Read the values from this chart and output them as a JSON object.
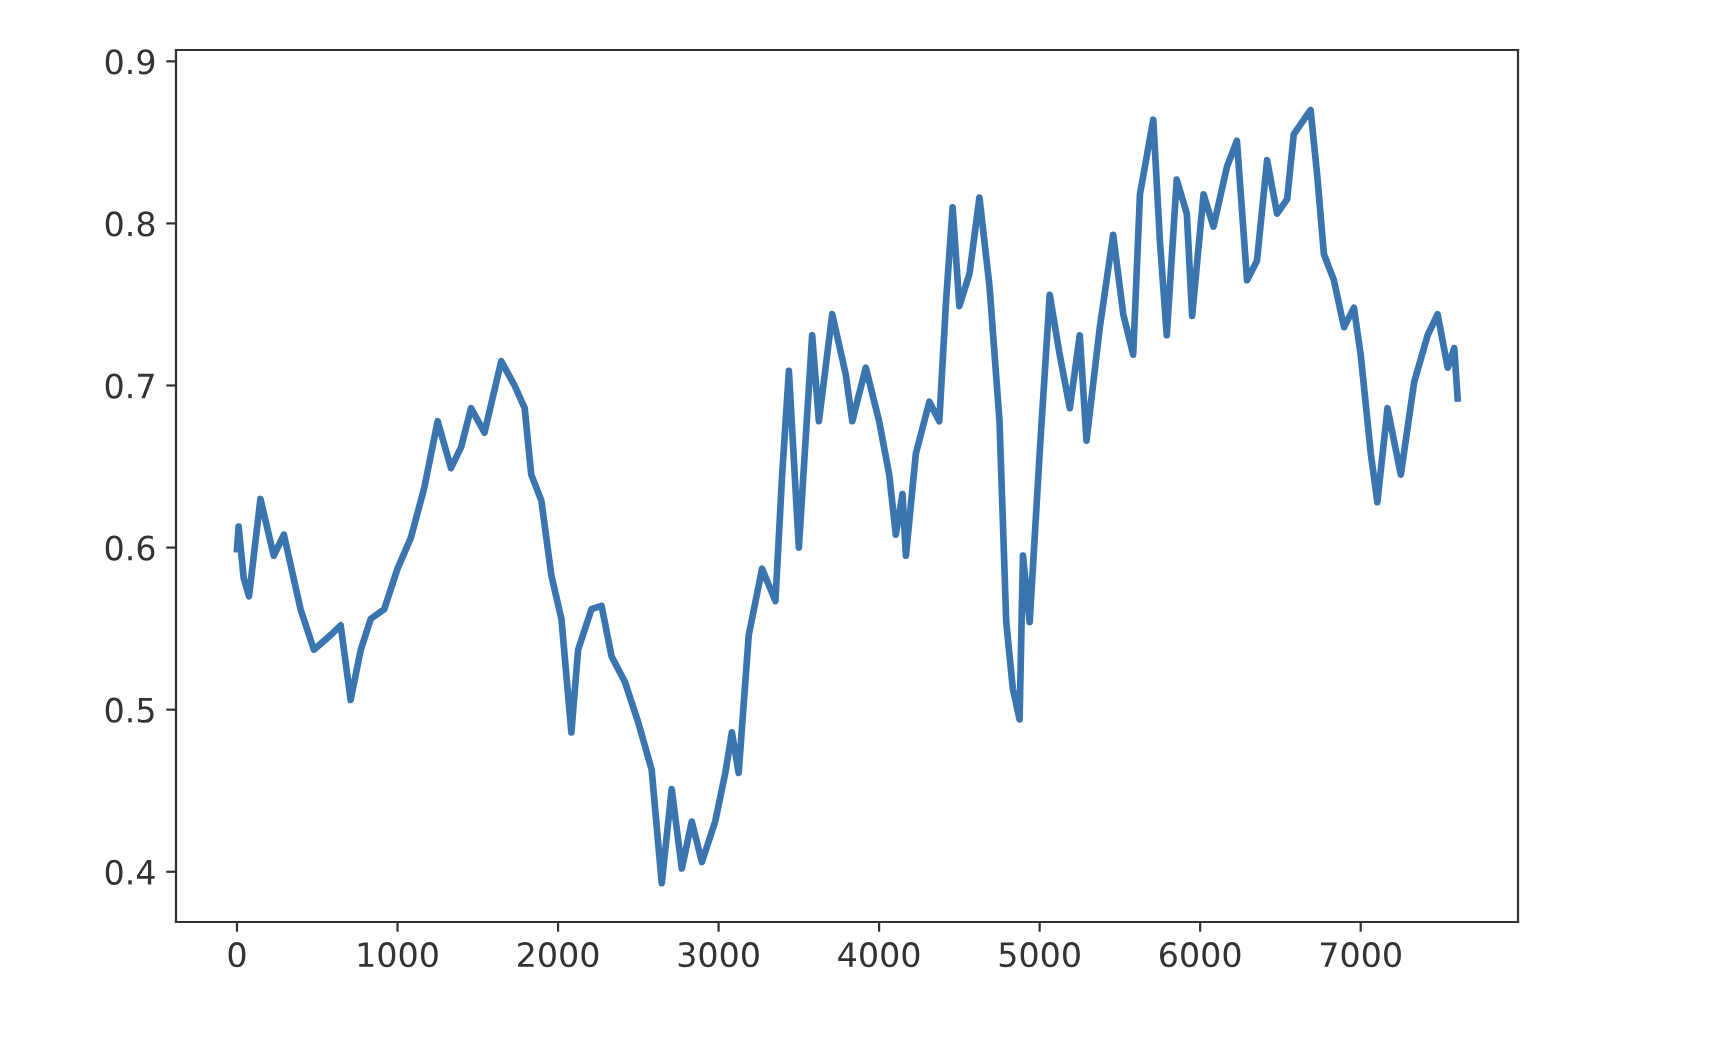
{
  "chart_data": {
    "type": "line",
    "x": [
      0,
      10,
      42,
      75,
      146,
      229,
      292,
      396,
      479,
      583,
      646,
      708,
      771,
      833,
      917,
      1000,
      1083,
      1167,
      1250,
      1333,
      1396,
      1458,
      1542,
      1646,
      1729,
      1792,
      1833,
      1896,
      1958,
      2021,
      2083,
      2125,
      2208,
      2271,
      2333,
      2417,
      2500,
      2583,
      2646,
      2708,
      2771,
      2833,
      2896,
      2979,
      3042,
      3083,
      3125,
      3188,
      3271,
      3354,
      3396,
      3438,
      3500,
      3583,
      3625,
      3708,
      3792,
      3833,
      3917,
      4000,
      4063,
      4104,
      4146,
      4167,
      4229,
      4313,
      4375,
      4417,
      4458,
      4500,
      4563,
      4625,
      4688,
      4750,
      4792,
      4833,
      4875,
      4896,
      4938,
      5000,
      5063,
      5125,
      5188,
      5250,
      5292,
      5375,
      5458,
      5521,
      5583,
      5625,
      5708,
      5750,
      5792,
      5854,
      5917,
      5950,
      6021,
      6083,
      6167,
      6229,
      6292,
      6354,
      6417,
      6479,
      6542,
      6583,
      6646,
      6688,
      6729,
      6771,
      6833,
      6896,
      6958,
      7000,
      7063,
      7104,
      7167,
      7250,
      7333,
      7417,
      7479,
      7542,
      7583,
      7604
    ],
    "series": [
      {
        "color": "#3a75b0",
        "values": [
          0.599,
          0.613,
          0.581,
          0.57,
          0.63,
          0.595,
          0.608,
          0.562,
          0.537,
          0.546,
          0.552,
          0.506,
          0.537,
          0.556,
          0.562,
          0.587,
          0.606,
          0.637,
          0.678,
          0.649,
          0.662,
          0.686,
          0.671,
          0.715,
          0.7,
          0.686,
          0.645,
          0.629,
          0.583,
          0.556,
          0.486,
          0.537,
          0.562,
          0.564,
          0.533,
          0.517,
          0.492,
          0.463,
          0.393,
          0.451,
          0.402,
          0.431,
          0.406,
          0.431,
          0.461,
          0.486,
          0.461,
          0.546,
          0.587,
          0.567,
          0.645,
          0.709,
          0.6,
          0.731,
          0.678,
          0.744,
          0.707,
          0.678,
          0.711,
          0.678,
          0.645,
          0.608,
          0.633,
          0.595,
          0.658,
          0.69,
          0.678,
          0.752,
          0.81,
          0.749,
          0.769,
          0.816,
          0.761,
          0.678,
          0.554,
          0.513,
          0.494,
          0.595,
          0.554,
          0.658,
          0.756,
          0.719,
          0.686,
          0.731,
          0.666,
          0.736,
          0.793,
          0.744,
          0.719,
          0.818,
          0.864,
          0.788,
          0.731,
          0.827,
          0.806,
          0.743,
          0.818,
          0.798,
          0.835,
          0.851,
          0.765,
          0.777,
          0.839,
          0.806,
          0.815,
          0.855,
          0.864,
          0.87,
          0.83,
          0.781,
          0.765,
          0.736,
          0.748,
          0.719,
          0.658,
          0.628,
          0.686,
          0.645,
          0.702,
          0.731,
          0.744,
          0.711,
          0.723,
          0.692
        ]
      }
    ],
    "xlim": [
      -380,
      7980
    ],
    "ylim": [
      0.369,
      0.907
    ],
    "xticks": [
      0,
      1000,
      2000,
      3000,
      4000,
      5000,
      6000,
      7000
    ],
    "yticks": [
      0.4,
      0.5,
      0.6,
      0.7,
      0.8,
      0.9
    ],
    "grid": false,
    "line_style": "solid",
    "marker": "none"
  }
}
